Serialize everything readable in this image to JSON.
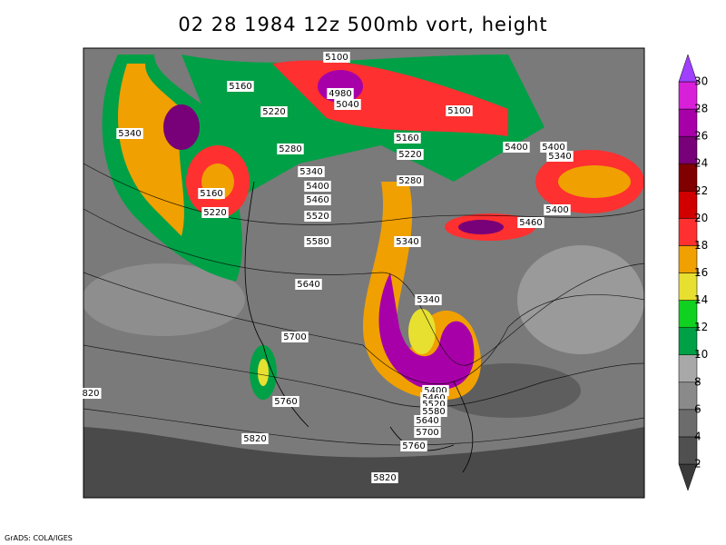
{
  "title": "02 28 1984 12z 500mb vort, height",
  "contour_labels": [
    "5100",
    "5160",
    "4980",
    "5040",
    "5220",
    "5100",
    "5340",
    "5160",
    "5400",
    "5400",
    "5340",
    "5280",
    "5220",
    "5340",
    "5280",
    "5400",
    "5160",
    "5460",
    "5400",
    "5220",
    "5520",
    "5460",
    "5580",
    "5340",
    "5640",
    "5340",
    "5700",
    "5400",
    "5460",
    "5520",
    "5580",
    "5640",
    "5700",
    "5760",
    "820",
    "5760",
    "5820",
    "5820"
  ],
  "colorbar": {
    "levels": [
      2,
      4,
      6,
      8,
      10,
      12,
      14,
      16,
      18,
      20,
      22,
      24,
      26,
      28,
      30
    ],
    "colors": [
      "#3a3a3a",
      "#505050",
      "#6c6c6c",
      "#8a8a8a",
      "#a8a8a8",
      "#00a046",
      "#10d020",
      "#e8e030",
      "#f0a000",
      "#ff3030",
      "#d00000",
      "#800000",
      "#780078",
      "#a800a8",
      "#d820d8",
      "#a040ff"
    ]
  },
  "credit": "GrADS: COLA/IGES"
}
